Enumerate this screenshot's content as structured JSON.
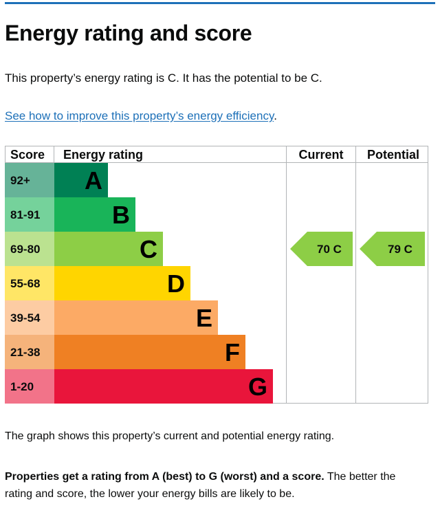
{
  "page": {
    "title": "Energy rating and score",
    "summary": "This property’s energy rating is C. It has the potential to be C.",
    "improve_link": "See how to improve this property’s energy efficiency",
    "improve_link_suffix": ".",
    "caption": "The graph shows this property’s current and potential energy rating.",
    "note_bold": "Properties get a rating from A (best) to G (worst) and a score.",
    "note_rest": " The better the rating and score, the lower your energy bills are likely to be."
  },
  "chart_data": {
    "type": "bar",
    "headers": {
      "score": "Score",
      "energy_rating": "Energy rating",
      "current": "Current",
      "potential": "Potential"
    },
    "bands": [
      {
        "score": "92+",
        "letter": "A",
        "color": "#008054",
        "light": "#66b398"
      },
      {
        "score": "81-91",
        "letter": "B",
        "color": "#19b459",
        "light": "#75d29b"
      },
      {
        "score": "69-80",
        "letter": "C",
        "color": "#8dce46",
        "light": "#bbe290"
      },
      {
        "score": "55-68",
        "letter": "D",
        "color": "#ffd500",
        "light": "#ffe666"
      },
      {
        "score": "39-54",
        "letter": "E",
        "color": "#fcaa65",
        "light": "#fdcca3"
      },
      {
        "score": "21-38",
        "letter": "F",
        "color": "#ef8023",
        "light": "#f5b37b"
      },
      {
        "score": "1-20",
        "letter": "G",
        "color": "#e9153b",
        "light": "#f27389"
      }
    ],
    "current": {
      "value": 70,
      "letter": "C",
      "label": "70 C",
      "color": "#8dce46"
    },
    "potential": {
      "value": 79,
      "letter": "C",
      "label": "79 C",
      "color": "#8dce46"
    }
  }
}
